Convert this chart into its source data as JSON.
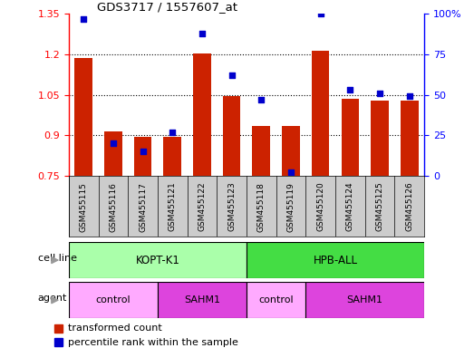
{
  "title": "GDS3717 / 1557607_at",
  "samples": [
    "GSM455115",
    "GSM455116",
    "GSM455117",
    "GSM455121",
    "GSM455122",
    "GSM455123",
    "GSM455118",
    "GSM455119",
    "GSM455120",
    "GSM455124",
    "GSM455125",
    "GSM455126"
  ],
  "red_values": [
    1.185,
    0.915,
    0.895,
    0.895,
    1.205,
    1.045,
    0.935,
    0.935,
    1.215,
    1.035,
    1.03,
    1.03
  ],
  "blue_values": [
    97,
    20,
    15,
    27,
    88,
    62,
    47,
    2,
    100,
    53,
    51,
    49
  ],
  "red_baseline": 0.75,
  "ylim_left": [
    0.75,
    1.35
  ],
  "ylim_right": [
    0,
    100
  ],
  "yticks_left": [
    0.75,
    0.9,
    1.05,
    1.2,
    1.35
  ],
  "yticks_right": [
    0,
    25,
    50,
    75,
    100
  ],
  "ytick_labels_right": [
    "0",
    "25",
    "50",
    "75",
    "100%"
  ],
  "bar_color": "#cc2200",
  "dot_color": "#0000cc",
  "background_color": "#ffffff",
  "tick_bg_color": "#cccccc",
  "cell_line_kopt_color": "#aaffaa",
  "cell_line_hpb_color": "#44dd44",
  "agent_control_color": "#ffaaff",
  "agent_sahm1_color": "#dd44dd",
  "cell_line_label": "cell line",
  "agent_label": "agent",
  "legend_items": [
    "transformed count",
    "percentile rank within the sample"
  ],
  "arrow_color": "#999999"
}
